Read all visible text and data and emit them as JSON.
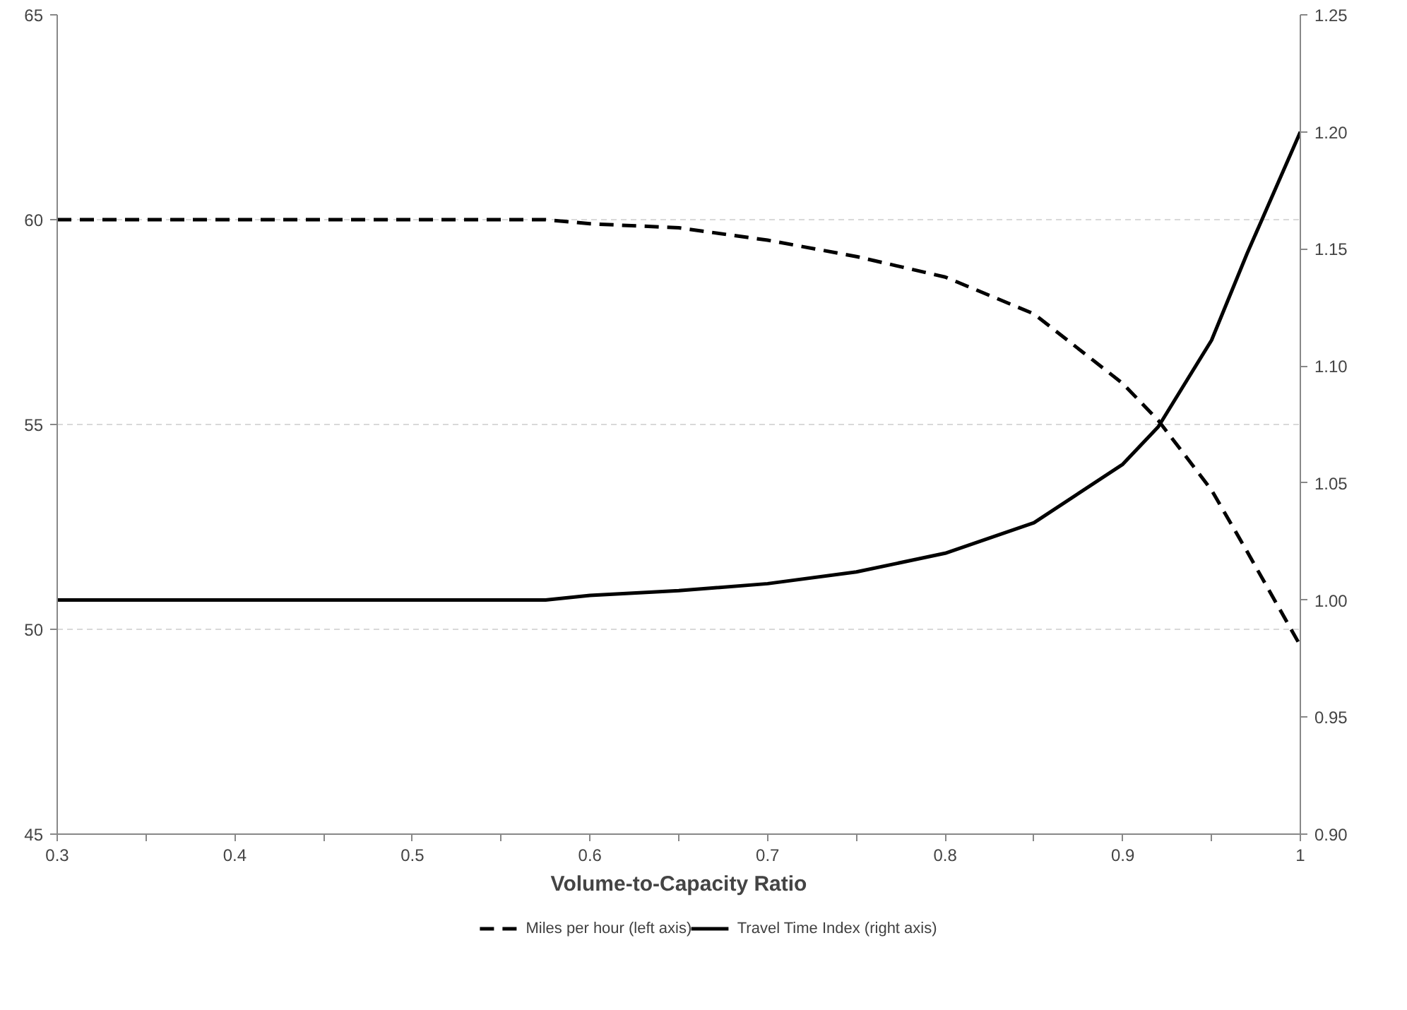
{
  "chart_data": {
    "type": "line",
    "xlabel": "Volume-to-Capacity Ratio",
    "xlim": [
      0.3,
      1
    ],
    "xticks": [
      {
        "value": 0.3,
        "label": "0.3"
      },
      {
        "value": 0.4,
        "label": "0.4"
      },
      {
        "value": 0.5,
        "label": "0.5"
      },
      {
        "value": 0.6,
        "label": "0.6"
      },
      {
        "value": 0.7,
        "label": "0.7"
      },
      {
        "value": 0.8,
        "label": "0.8"
      },
      {
        "value": 0.9,
        "label": "0.9"
      },
      {
        "value": 1,
        "label": "1"
      }
    ],
    "ylim": [
      45,
      65
    ],
    "yticks": [
      45,
      50,
      55,
      60,
      65
    ],
    "y2lim": [
      0.9,
      1.25
    ],
    "y2ticks": [
      {
        "value": 0.9,
        "label": "0.90"
      },
      {
        "value": 0.95,
        "label": "0.95"
      },
      {
        "value": 1.0,
        "label": "1.00"
      },
      {
        "value": 1.05,
        "label": "1.05"
      },
      {
        "value": 1.1,
        "label": "1.10"
      },
      {
        "value": 1.15,
        "label": "1.15"
      },
      {
        "value": 1.2,
        "label": "1.20"
      },
      {
        "value": 1.25,
        "label": "1.25"
      }
    ],
    "grid": "y",
    "legend": "bottom",
    "marker": "none",
    "series": [
      {
        "name": "Miles per hour (left axis)",
        "color": "#000000",
        "line_style": "dashed",
        "x": [
          0.3,
          0.4,
          0.5,
          0.575,
          0.6,
          0.65,
          0.7,
          0.75,
          0.8,
          0.85,
          0.9,
          0.92,
          0.95,
          0.97,
          1.0
        ],
        "values": [
          60,
          60,
          60,
          60,
          59.9,
          59.8,
          59.5,
          59.1,
          58.6,
          57.7,
          56.0,
          55.1,
          53.4,
          51.9,
          49.6
        ]
      },
      {
        "name": "Travel Time Index (right axis)",
        "color": "#000000",
        "line_style": "solid",
        "axis": "y2",
        "x": [
          0.3,
          0.4,
          0.5,
          0.575,
          0.6,
          0.65,
          0.7,
          0.75,
          0.8,
          0.85,
          0.9,
          0.92,
          0.95,
          0.97,
          1.0
        ],
        "values": [
          1.0,
          1.0,
          1.0,
          1.0,
          1.002,
          1.004,
          1.007,
          1.012,
          1.02,
          1.033,
          1.058,
          1.074,
          1.111,
          1.148,
          1.2
        ]
      }
    ]
  }
}
